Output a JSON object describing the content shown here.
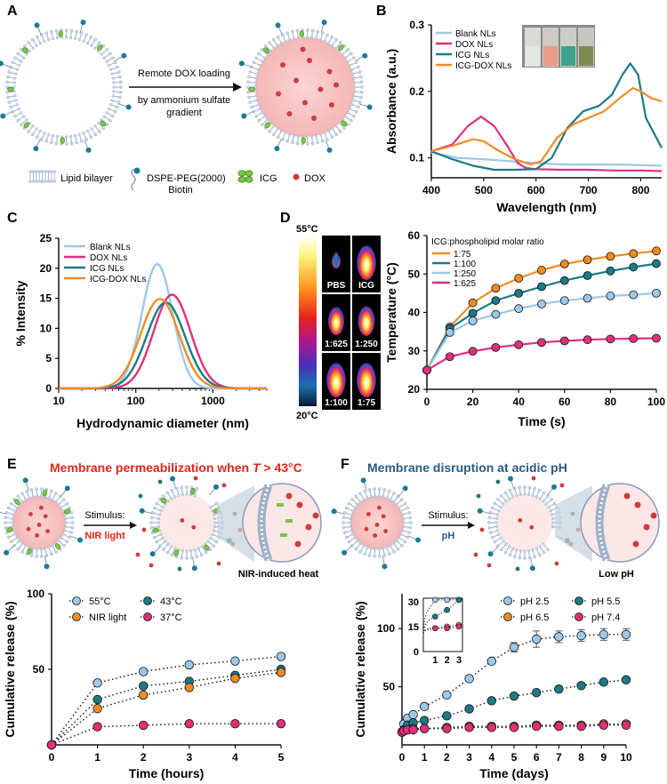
{
  "panels": {
    "A": "A",
    "B": "B",
    "C": "C",
    "D": "D",
    "E": "E",
    "F": "F"
  },
  "panelA": {
    "arrow_line1": "Remote DOX loading",
    "arrow_line2": "by ammonium sulfate",
    "arrow_line3": "gradient",
    "legend": [
      {
        "label": "Lipid bilayer"
      },
      {
        "label": "DSPE-PEG(2000)",
        "sub": "Biotin"
      },
      {
        "label": "ICG"
      },
      {
        "label": "DOX"
      }
    ]
  },
  "colors": {
    "blank": "#9ec8ea",
    "dox": "#e0307a",
    "icg": "#1b7a86",
    "icgdox": "#f08c24",
    "red": "#e8231c",
    "blue": "#2a5b86",
    "pink": "#f7c6c6",
    "lipid": "#bfcfe0"
  },
  "panelB": {
    "chart_data": {
      "type": "line",
      "xlabel": "Wavelength (nm)",
      "ylabel": "Absorbance (a.u.)",
      "xlim": [
        400,
        840
      ],
      "ylim": [
        0.07,
        0.3
      ],
      "xticks": [
        400,
        500,
        600,
        700,
        800
      ],
      "yticks": [
        0.1,
        0.2,
        0.3
      ],
      "series": [
        {
          "name": "Blank NLs",
          "key": "blank",
          "x": [
            400,
            450,
            500,
            550,
            600,
            650,
            700,
            750,
            800,
            840
          ],
          "y": [
            0.108,
            0.1,
            0.098,
            0.095,
            0.092,
            0.09,
            0.09,
            0.09,
            0.089,
            0.088
          ]
        },
        {
          "name": "DOX NLs",
          "key": "dox",
          "x": [
            400,
            440,
            470,
            495,
            520,
            545,
            565,
            580,
            600,
            650,
            700,
            750,
            800,
            840
          ],
          "y": [
            0.11,
            0.12,
            0.148,
            0.162,
            0.148,
            0.118,
            0.092,
            0.085,
            0.083,
            0.082,
            0.082,
            0.081,
            0.081,
            0.08
          ]
        },
        {
          "name": "ICG NLs",
          "key": "icg",
          "x": [
            400,
            440,
            480,
            520,
            560,
            600,
            630,
            660,
            690,
            720,
            745,
            765,
            780,
            795,
            810,
            840
          ],
          "y": [
            0.11,
            0.098,
            0.088,
            0.082,
            0.082,
            0.083,
            0.1,
            0.145,
            0.17,
            0.178,
            0.195,
            0.225,
            0.242,
            0.225,
            0.16,
            0.115
          ]
        },
        {
          "name": "ICG-DOX NLs",
          "key": "icgdox",
          "x": [
            400,
            440,
            480,
            500,
            530,
            560,
            590,
            610,
            640,
            670,
            700,
            730,
            760,
            785,
            800,
            820,
            840
          ],
          "y": [
            0.11,
            0.118,
            0.128,
            0.125,
            0.11,
            0.098,
            0.09,
            0.095,
            0.13,
            0.15,
            0.16,
            0.17,
            0.19,
            0.205,
            0.2,
            0.19,
            0.185
          ]
        }
      ]
    }
  },
  "panelC": {
    "chart_data": {
      "type": "line",
      "xlabel": "Hydrodynamic diameter (nm)",
      "ylabel": "% Intensity",
      "xscale": "log",
      "xlim": [
        10,
        5000
      ],
      "ylim": [
        0,
        25
      ],
      "xticks": [
        10,
        100,
        1000
      ],
      "yticks": [
        0,
        5,
        10,
        15,
        20,
        25
      ],
      "series": [
        {
          "name": "Blank NLs",
          "key": "blank",
          "center": 190,
          "peak": 20.7,
          "width": 0.2
        },
        {
          "name": "DOX NLs",
          "key": "dox",
          "center": 295,
          "peak": 15.6,
          "width": 0.24
        },
        {
          "name": "ICG NLs",
          "key": "icg",
          "center": 245,
          "peak": 14.3,
          "width": 0.25
        },
        {
          "name": "ICG-DOX NLs",
          "key": "icgdox",
          "center": 205,
          "peak": 14.9,
          "width": 0.25
        }
      ]
    }
  },
  "panelD": {
    "scale_top": "55°C",
    "scale_bottom": "20°C",
    "thermal_labels": [
      "PBS",
      "ICG",
      "1:625",
      "1:250",
      "1:100",
      "1:75"
    ],
    "chart_data": {
      "type": "line",
      "xlabel": "Time (s)",
      "ylabel": "Temperature (°C)",
      "legend_title": "ICG:phospholipid molar ratio",
      "xlim": [
        0,
        100
      ],
      "ylim": [
        20,
        60
      ],
      "xticks": [
        0,
        20,
        40,
        60,
        80,
        100
      ],
      "yticks": [
        20,
        30,
        40,
        50,
        60
      ],
      "x": [
        0,
        10,
        20,
        30,
        40,
        50,
        60,
        70,
        80,
        90,
        100
      ],
      "series": [
        {
          "name": "1:75",
          "key": "icgdox",
          "y": [
            25,
            36.2,
            42.5,
            46.3,
            48.9,
            51,
            52.6,
            53.7,
            54.6,
            55.3,
            56
          ]
        },
        {
          "name": "1:100",
          "key": "icg",
          "y": [
            25,
            35.8,
            39.8,
            43.1,
            45,
            46.7,
            48.3,
            49.6,
            50.8,
            51.8,
            52.7
          ]
        },
        {
          "name": "1:250",
          "key": "blank",
          "y": [
            25,
            34.8,
            37.8,
            39.5,
            41,
            42.2,
            43.1,
            43.7,
            44.3,
            44.6,
            45
          ]
        },
        {
          "name": "1:625",
          "key": "dox",
          "y": [
            25,
            28.5,
            29.9,
            30.9,
            31.6,
            32.2,
            32.6,
            32.9,
            33.1,
            33.2,
            33.3
          ]
        }
      ]
    }
  },
  "panelE": {
    "title_prefix": "Membrane permeabilization when ",
    "title_var": "T",
    "title_suffix": " > 43°C",
    "stimulus_label": "Stimulus:",
    "stimulus_value": "NIR light",
    "caption": "NIR-induced heat",
    "chart_data": {
      "type": "line",
      "xlabel": "Time (hours)",
      "ylabel": "Cumulative release (%)",
      "xlim": [
        0,
        5
      ],
      "ylim": [
        0,
        100
      ],
      "xticks": [
        0,
        1,
        2,
        3,
        4,
        5
      ],
      "yticks": [
        50,
        100
      ],
      "x": [
        0,
        1,
        2,
        3,
        4,
        5
      ],
      "series": [
        {
          "name": "55°C",
          "key": "blank",
          "y": [
            0,
            41,
            48.5,
            53,
            55.5,
            58.5
          ]
        },
        {
          "name": "43°C",
          "key": "icg",
          "y": [
            0,
            30,
            39,
            42,
            46,
            50
          ]
        },
        {
          "name": "NIR light",
          "key": "icgdox",
          "y": [
            0,
            24,
            33,
            38,
            44,
            48
          ]
        },
        {
          "name": "37°C",
          "key": "dox",
          "y": [
            0,
            12,
            13,
            14,
            14,
            14
          ]
        }
      ]
    }
  },
  "panelF": {
    "title": "Membrane disruption at acidic pH",
    "stimulus_label": "Stimulus:",
    "stimulus_value": "pH",
    "caption": "Low pH",
    "chart_data": {
      "type": "line",
      "xlabel": "Time (days)",
      "ylabel": "Cumulative release (%)",
      "xlim": [
        0,
        10
      ],
      "ylim": [
        0,
        130
      ],
      "xticks": [
        0,
        1,
        2,
        3,
        4,
        5,
        6,
        7,
        8,
        9,
        10
      ],
      "yticks": [
        50,
        100
      ],
      "x": [
        0,
        0.083,
        0.25,
        0.5,
        1,
        2,
        3,
        4,
        5,
        6,
        7,
        8,
        9,
        10
      ],
      "series": [
        {
          "name": "pH 2.5",
          "key": "blank",
          "y": [
            11,
            18,
            23,
            26,
            33,
            43,
            57,
            72,
            84,
            91,
            93,
            94,
            95,
            95
          ],
          "err": [
            0,
            0,
            0,
            0,
            0,
            0,
            0,
            0,
            4,
            7,
            5,
            5,
            5,
            5
          ]
        },
        {
          "name": "pH 5.5",
          "key": "icg",
          "y": [
            11,
            13,
            17,
            19,
            21,
            25,
            31,
            38,
            42,
            45,
            48,
            51,
            54,
            56
          ],
          "err": [
            0,
            0,
            0,
            0,
            0,
            0,
            0,
            0,
            0,
            0,
            0,
            0,
            0,
            0
          ]
        },
        {
          "name": "pH 6.5",
          "key": "icgdox",
          "y": [
            11,
            12,
            13,
            14,
            14,
            15,
            16,
            16,
            16,
            17,
            17,
            17,
            18,
            18
          ],
          "err": [
            0,
            0,
            0,
            0,
            0,
            0,
            0,
            0,
            0,
            0,
            0,
            0,
            0,
            0
          ]
        },
        {
          "name": "pH 7.4",
          "key": "dox",
          "y": [
            11,
            12,
            13,
            13,
            14,
            14,
            15,
            15,
            15,
            16,
            16,
            16,
            17,
            17
          ],
          "err": [
            0,
            0,
            0,
            0,
            0,
            0,
            0,
            0,
            0,
            0,
            0,
            0,
            0,
            0
          ]
        }
      ],
      "inset": {
        "xticks": [
          1,
          2,
          3
        ],
        "yticks": [
          0,
          15,
          30
        ],
        "xlim": [
          0,
          3.3
        ],
        "ylim": [
          0,
          32
        ]
      }
    }
  }
}
